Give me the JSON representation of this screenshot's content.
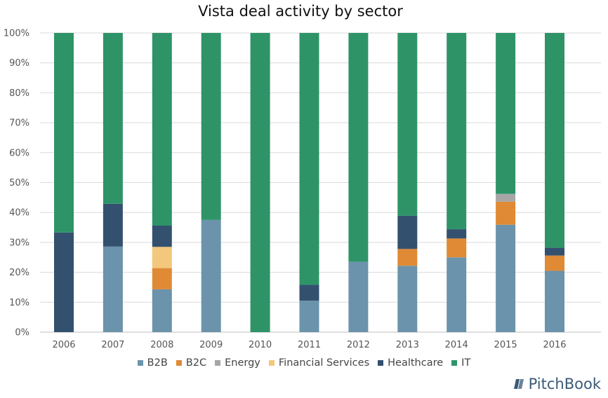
{
  "chart_data": {
    "type": "bar",
    "stacked": true,
    "title": "Vista deal activity by sector",
    "xlabel": "",
    "ylabel": "",
    "ylim": [
      0,
      100
    ],
    "yticks": [
      "0%",
      "10%",
      "20%",
      "30%",
      "40%",
      "50%",
      "60%",
      "70%",
      "80%",
      "90%",
      "100%"
    ],
    "grid": true,
    "legend_position": "bottom",
    "categories": [
      "2006",
      "2007",
      "2008",
      "2009",
      "2010",
      "2011",
      "2012",
      "2013",
      "2014",
      "2015",
      "2016"
    ],
    "series": [
      {
        "name": "B2B",
        "color": "#6b93ab",
        "values": [
          0,
          28.6,
          14.3,
          37.5,
          0,
          10.5,
          23.5,
          22.2,
          25.0,
          35.9,
          20.5
        ]
      },
      {
        "name": "B2C",
        "color": "#e08a35",
        "values": [
          0,
          0,
          7.1,
          0,
          0,
          0,
          0,
          5.6,
          6.3,
          7.7,
          5.1
        ]
      },
      {
        "name": "Energy",
        "color": "#a6a6a6",
        "values": [
          0,
          0,
          0,
          0,
          0,
          0,
          0,
          0,
          0,
          2.6,
          0
        ]
      },
      {
        "name": "Financial Services",
        "color": "#f3c77c",
        "values": [
          0,
          0,
          7.1,
          0,
          0,
          0,
          0,
          0,
          0,
          0,
          0
        ]
      },
      {
        "name": "Healthcare",
        "color": "#34506f",
        "values": [
          33.3,
          14.3,
          7.1,
          0,
          0,
          5.3,
          0,
          11.1,
          3.1,
          0,
          2.6
        ]
      },
      {
        "name": "IT",
        "color": "#2e9468",
        "values": [
          66.7,
          57.1,
          64.4,
          62.5,
          100,
          84.2,
          76.5,
          61.1,
          65.6,
          53.8,
          71.8
        ]
      }
    ]
  },
  "branding": {
    "logo_text": "PitchBook",
    "logo_icon": "pitchbook-book-icon",
    "logo_color": "#3b5a78"
  }
}
